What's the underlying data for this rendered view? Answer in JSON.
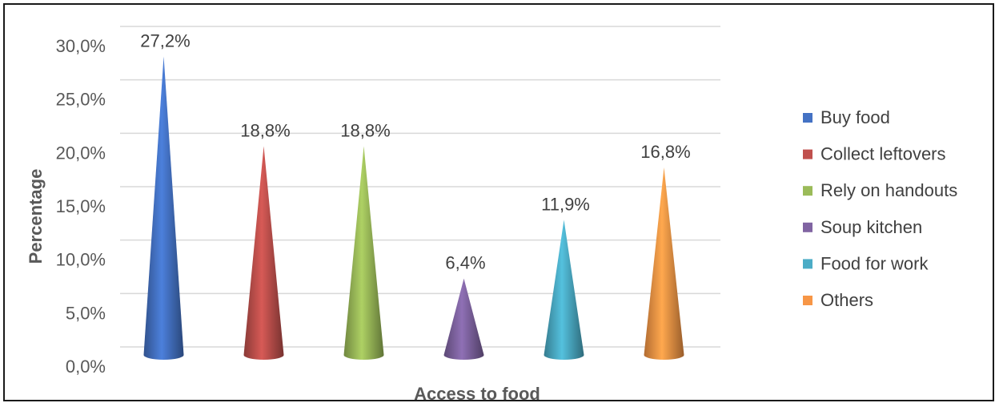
{
  "chart_data": {
    "type": "bar",
    "shape": "cone",
    "categories": [
      "Buy food",
      "Collect leftovers",
      "Rely on handouts",
      "Soup kitchen",
      "Food for work",
      "Others"
    ],
    "values": [
      27.2,
      18.8,
      18.8,
      6.4,
      11.9,
      16.8
    ],
    "data_labels": [
      "27,2%",
      "18,8%",
      "18,8%",
      "6,4%",
      "11,9%",
      "16,8%"
    ],
    "colors": [
      "#4472C4",
      "#C0504D",
      "#9BBB59",
      "#8064A2",
      "#4BACC6",
      "#F79646"
    ],
    "xlabel": "Access to food",
    "ylabel": "Percentage",
    "ylim": [
      0,
      30
    ],
    "yticks": [
      0,
      5,
      10,
      15,
      20,
      25,
      30
    ],
    "ytick_labels": [
      "0,0%",
      "5,0%",
      "10,0%",
      "15,0%",
      "20,0%",
      "25,0%",
      "30,0%"
    ],
    "grid": true,
    "legend_position": "right",
    "legend": [
      "Buy food",
      "Collect leftovers",
      "Rely on handouts",
      "Soup kitchen",
      "Food for work",
      "Others"
    ]
  }
}
